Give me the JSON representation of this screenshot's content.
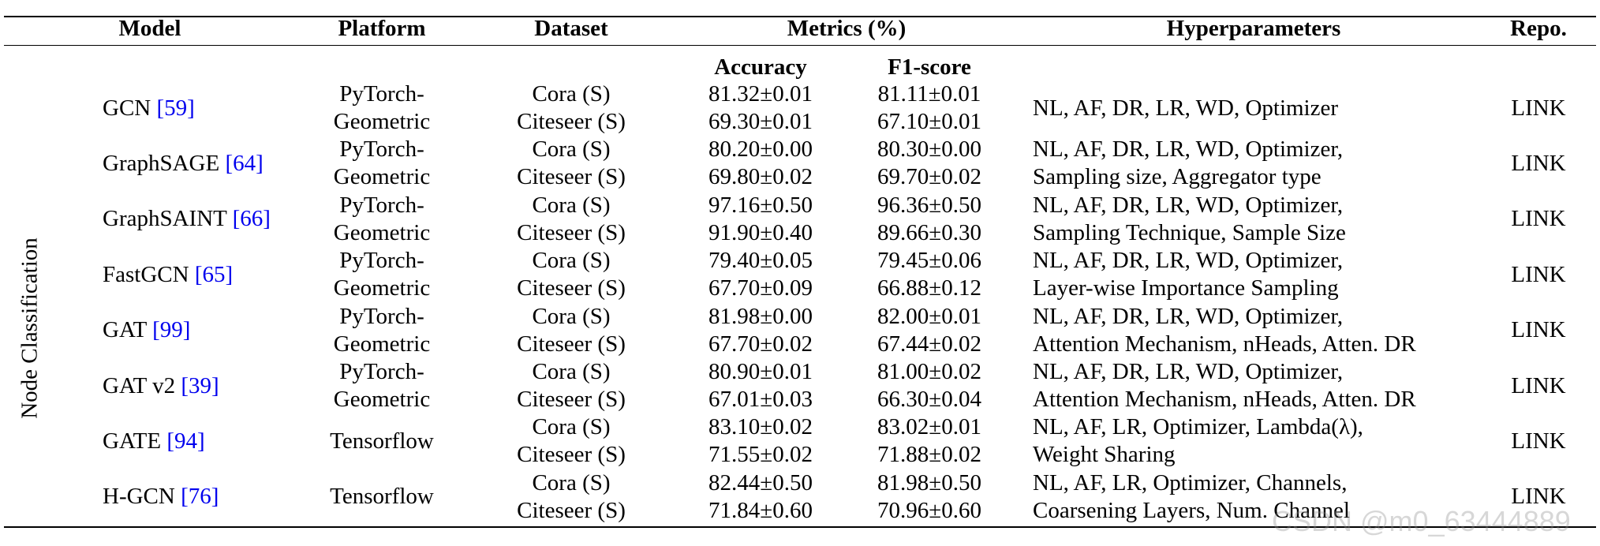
{
  "headers": {
    "model": "Model",
    "platform": "Platform",
    "dataset": "Dataset",
    "metrics": "Metrics (%)",
    "hyperparameters": "Hyperparameters",
    "repo": "Repo."
  },
  "subheaders": {
    "accuracy": "Accuracy",
    "f1": "F1-score"
  },
  "category": "Node Classification",
  "rows": [
    {
      "model": "GCN ",
      "ref": "[59]",
      "platform": [
        "PyTorch-",
        "Geometric"
      ],
      "datasets": [
        "Cora (S)",
        "Citeseer (S)"
      ],
      "acc": [
        "81.32±0.01",
        "69.30±0.01"
      ],
      "f1": [
        "81.11±0.01",
        "67.10±0.01"
      ],
      "hyper": [
        "NL, AF, DR, LR, WD, Optimizer"
      ],
      "repo": "LINK"
    },
    {
      "model": "GraphSAGE ",
      "ref": "[64]",
      "platform": [
        "PyTorch-",
        "Geometric"
      ],
      "datasets": [
        "Cora (S)",
        "Citeseer (S)"
      ],
      "acc": [
        "80.20±0.00",
        "69.80±0.02"
      ],
      "f1": [
        "80.30±0.00",
        "69.70±0.02"
      ],
      "hyper": [
        "NL, AF, DR, LR, WD, Optimizer,",
        "Sampling size, Aggregator type"
      ],
      "repo": "LINK"
    },
    {
      "model": "GraphSAINT ",
      "ref": "[66]",
      "platform": [
        "PyTorch-",
        "Geometric"
      ],
      "datasets": [
        "Cora (S)",
        "Citeseer (S)"
      ],
      "acc": [
        "97.16±0.50",
        "91.90±0.40"
      ],
      "f1": [
        "96.36±0.50",
        "89.66±0.30"
      ],
      "hyper": [
        "NL, AF, DR, LR, WD, Optimizer,",
        "Sampling Technique, Sample Size"
      ],
      "repo": "LINK"
    },
    {
      "model": "FastGCN ",
      "ref": "[65]",
      "platform": [
        "PyTorch-",
        "Geometric"
      ],
      "datasets": [
        "Cora (S)",
        "Citeseer (S)"
      ],
      "acc": [
        "79.40±0.05",
        "67.70±0.09"
      ],
      "f1": [
        "79.45±0.06",
        "66.88±0.12"
      ],
      "hyper": [
        "NL, AF, DR, LR, WD, Optimizer,",
        "Layer-wise Importance Sampling"
      ],
      "repo": "LINK"
    },
    {
      "model": "GAT ",
      "ref": "[99]",
      "platform": [
        "PyTorch-",
        "Geometric"
      ],
      "datasets": [
        "Cora (S)",
        "Citeseer (S)"
      ],
      "acc": [
        "81.98±0.00",
        "67.70±0.02"
      ],
      "f1": [
        "82.00±0.01",
        "67.44±0.02"
      ],
      "hyper": [
        "NL, AF, DR, LR, WD, Optimizer,",
        "Attention Mechanism, nHeads, Atten. DR"
      ],
      "repo": "LINK"
    },
    {
      "model": "GAT v2 ",
      "ref": "[39]",
      "platform": [
        "PyTorch-",
        "Geometric"
      ],
      "datasets": [
        "Cora (S)",
        "Citeseer (S)"
      ],
      "acc": [
        "80.90±0.01",
        "67.01±0.03"
      ],
      "f1": [
        "81.00±0.02",
        "66.30±0.04"
      ],
      "hyper": [
        "NL, AF, DR, LR, WD, Optimizer,",
        "Attention Mechanism, nHeads, Atten. DR"
      ],
      "repo": "LINK"
    },
    {
      "model": "GATE ",
      "ref": "[94]",
      "platform": [
        "Tensorflow"
      ],
      "datasets": [
        "Cora (S)",
        "Citeseer (S)"
      ],
      "acc": [
        "83.10±0.02",
        "71.55±0.02"
      ],
      "f1": [
        "83.02±0.01",
        "71.88±0.02"
      ],
      "hyper": [
        "NL, AF, LR, Optimizer, Lambda(λ),",
        "Weight Sharing"
      ],
      "repo": "LINK"
    },
    {
      "model": "H-GCN ",
      "ref": "[76]",
      "platform": [
        "Tensorflow"
      ],
      "datasets": [
        "Cora (S)",
        "Citeseer (S)"
      ],
      "acc": [
        "82.44±0.50",
        "71.84±0.60"
      ],
      "f1": [
        "81.98±0.50",
        "70.96±0.60"
      ],
      "hyper": [
        "NL, AF, LR, Optimizer, Channels,",
        "Coarsening Layers, Num. Channel"
      ],
      "repo": "LINK"
    }
  ],
  "watermark": "CSDN @m0_63444889"
}
